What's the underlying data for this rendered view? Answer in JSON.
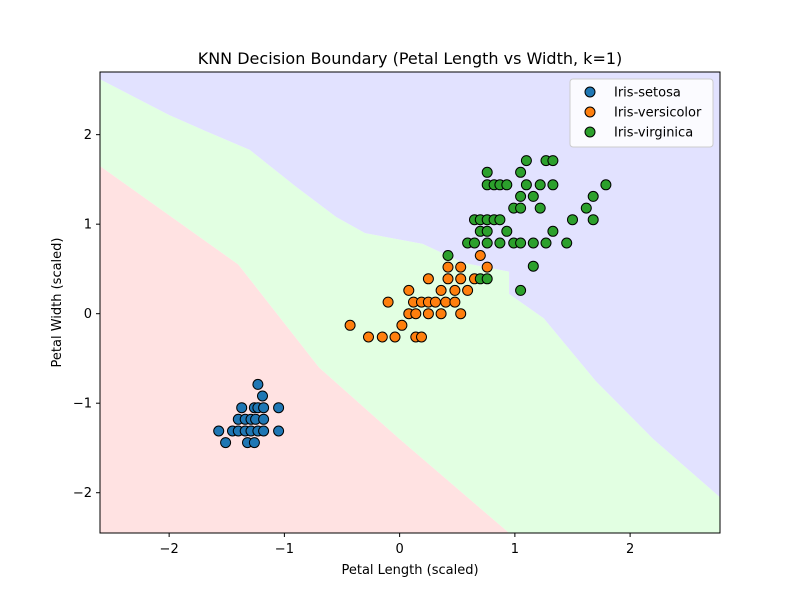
{
  "chart_data": {
    "type": "scatter",
    "title": "KNN Decision Boundary (Petal Length vs Width, k=1)",
    "xlabel": "Petal Length (scaled)",
    "ylabel": "Petal Width (scaled)",
    "xlim": [
      -2.6,
      2.78
    ],
    "ylim": [
      -2.45,
      2.7
    ],
    "xticks": [
      -2,
      -1,
      0,
      1,
      2
    ],
    "yticks": [
      -2,
      -1,
      0,
      1,
      2
    ],
    "legend_position": "top-right",
    "regions": [
      {
        "class": "Iris-setosa",
        "color": "#ffe2e2",
        "polygon": [
          [
            -2.6,
            1.65
          ],
          [
            -1.4,
            0.55
          ],
          [
            -0.7,
            -0.6
          ],
          [
            0,
            -1.4
          ],
          [
            0.95,
            -2.45
          ],
          [
            -2.6,
            -2.45
          ]
        ]
      },
      {
        "class": "Iris-versicolor",
        "color": "#e2ffe2",
        "polygon": [
          [
            -2.6,
            2.62
          ],
          [
            -2.0,
            2.22
          ],
          [
            -1.7,
            2.05
          ],
          [
            -1.3,
            1.83
          ],
          [
            -0.9,
            1.42
          ],
          [
            -0.55,
            1.08
          ],
          [
            -0.3,
            0.9
          ],
          [
            0.2,
            0.78
          ],
          [
            0.55,
            0.57
          ],
          [
            0.95,
            0.47
          ],
          [
            0.95,
            0.22
          ],
          [
            1.25,
            -0.05
          ],
          [
            1.7,
            -0.75
          ],
          [
            2.2,
            -1.4
          ],
          [
            2.78,
            -2.05
          ],
          [
            2.78,
            -2.45
          ],
          [
            0.95,
            -2.45
          ],
          [
            0,
            -1.4
          ],
          [
            -0.7,
            -0.6
          ],
          [
            -1.4,
            0.55
          ],
          [
            -2.6,
            1.65
          ]
        ]
      },
      {
        "class": "Iris-virginica",
        "color": "#e2e2ff",
        "polygon": [
          [
            -2.6,
            2.7
          ],
          [
            2.78,
            2.7
          ],
          [
            2.78,
            -2.05
          ],
          [
            2.2,
            -1.4
          ],
          [
            1.7,
            -0.75
          ],
          [
            1.25,
            -0.05
          ],
          [
            0.95,
            0.22
          ],
          [
            0.95,
            0.47
          ],
          [
            0.55,
            0.57
          ],
          [
            0.2,
            0.78
          ],
          [
            -0.3,
            0.9
          ],
          [
            -0.55,
            1.08
          ],
          [
            -0.9,
            1.42
          ],
          [
            -1.3,
            1.83
          ],
          [
            -1.7,
            2.05
          ],
          [
            -2.0,
            2.22
          ],
          [
            -2.6,
            2.62
          ]
        ]
      }
    ],
    "series": [
      {
        "name": "Iris-setosa",
        "color": "#1f77b4",
        "points": [
          [
            -1.57,
            -1.31
          ],
          [
            -1.51,
            -1.44
          ],
          [
            -1.45,
            -1.31
          ],
          [
            -1.4,
            -1.31
          ],
          [
            -1.4,
            -1.18
          ],
          [
            -1.37,
            -1.05
          ],
          [
            -1.34,
            -1.31
          ],
          [
            -1.34,
            -1.18
          ],
          [
            -1.32,
            -1.44
          ],
          [
            -1.29,
            -1.31
          ],
          [
            -1.29,
            -1.18
          ],
          [
            -1.26,
            -1.44
          ],
          [
            -1.26,
            -1.05
          ],
          [
            -1.25,
            -1.18
          ],
          [
            -1.23,
            -1.31
          ],
          [
            -1.23,
            -1.05
          ],
          [
            -1.23,
            -0.79
          ],
          [
            -1.19,
            -0.92
          ],
          [
            -1.18,
            -1.05
          ],
          [
            -1.18,
            -1.18
          ],
          [
            -1.18,
            -1.31
          ],
          [
            -1.05,
            -1.05
          ],
          [
            -1.05,
            -1.31
          ]
        ]
      },
      {
        "name": "Iris-versicolor",
        "color": "#ff7f0e",
        "points": [
          [
            -0.43,
            -0.13
          ],
          [
            -0.27,
            -0.26
          ],
          [
            -0.15,
            -0.26
          ],
          [
            -0.1,
            0.13
          ],
          [
            -0.04,
            -0.26
          ],
          [
            0.02,
            -0.13
          ],
          [
            0.08,
            0.0
          ],
          [
            0.08,
            0.26
          ],
          [
            0.12,
            0.13
          ],
          [
            0.14,
            -0.26
          ],
          [
            0.14,
            0.0
          ],
          [
            0.19,
            -0.26
          ],
          [
            0.19,
            0.13
          ],
          [
            0.25,
            0.0
          ],
          [
            0.25,
            0.13
          ],
          [
            0.25,
            0.39
          ],
          [
            0.31,
            0.13
          ],
          [
            0.36,
            0.0
          ],
          [
            0.36,
            0.26
          ],
          [
            0.4,
            0.13
          ],
          [
            0.42,
            0.39
          ],
          [
            0.42,
            0.52
          ],
          [
            0.48,
            0.13
          ],
          [
            0.48,
            0.26
          ],
          [
            0.53,
            0.0
          ],
          [
            0.53,
            0.39
          ],
          [
            0.53,
            0.52
          ],
          [
            0.59,
            0.26
          ],
          [
            0.65,
            0.39
          ],
          [
            0.7,
            0.65
          ],
          [
            0.76,
            0.52
          ]
        ]
      },
      {
        "name": "Iris-virginica",
        "color": "#2ca02c",
        "points": [
          [
            0.42,
            0.65
          ],
          [
            0.59,
            0.79
          ],
          [
            0.65,
            0.79
          ],
          [
            0.65,
            1.05
          ],
          [
            0.7,
            0.39
          ],
          [
            0.7,
            0.92
          ],
          [
            0.7,
            1.05
          ],
          [
            0.76,
            0.39
          ],
          [
            0.76,
            0.79
          ],
          [
            0.76,
            0.92
          ],
          [
            0.76,
            1.05
          ],
          [
            0.76,
            1.44
          ],
          [
            0.76,
            1.58
          ],
          [
            0.82,
            1.05
          ],
          [
            0.82,
            1.44
          ],
          [
            0.87,
            0.79
          ],
          [
            0.87,
            1.05
          ],
          [
            0.87,
            1.44
          ],
          [
            0.93,
            0.92
          ],
          [
            0.93,
            1.44
          ],
          [
            0.99,
            1.18
          ],
          [
            0.99,
            0.79
          ],
          [
            1.05,
            0.26
          ],
          [
            1.05,
            0.79
          ],
          [
            1.05,
            1.18
          ],
          [
            1.05,
            1.31
          ],
          [
            1.05,
            1.58
          ],
          [
            1.1,
            1.44
          ],
          [
            1.1,
            1.71
          ],
          [
            1.16,
            0.53
          ],
          [
            1.16,
            0.79
          ],
          [
            1.16,
            1.31
          ],
          [
            1.22,
            1.18
          ],
          [
            1.22,
            1.44
          ],
          [
            1.27,
            0.79
          ],
          [
            1.27,
            1.71
          ],
          [
            1.33,
            0.92
          ],
          [
            1.33,
            1.44
          ],
          [
            1.33,
            1.71
          ],
          [
            1.45,
            0.79
          ],
          [
            1.5,
            1.05
          ],
          [
            1.62,
            1.18
          ],
          [
            1.68,
            1.05
          ],
          [
            1.68,
            1.31
          ],
          [
            1.79,
            1.44
          ]
        ]
      }
    ]
  }
}
